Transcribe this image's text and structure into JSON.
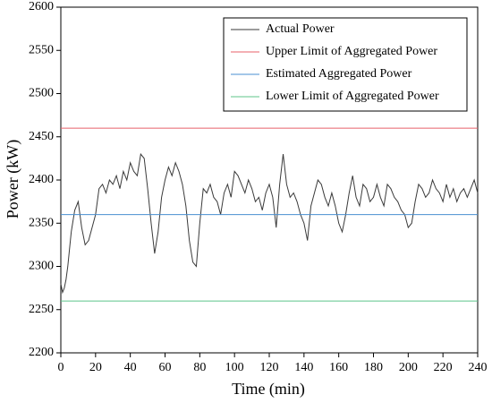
{
  "chart_data": {
    "type": "line",
    "xlabel": "Time (min)",
    "ylabel": "Power (kW)",
    "xlim": [
      0,
      240
    ],
    "xticks": [
      0,
      20,
      40,
      60,
      80,
      100,
      120,
      140,
      160,
      180,
      200,
      220,
      240
    ],
    "ylim": [
      2200,
      2600
    ],
    "yticks": [
      2200,
      2250,
      2300,
      2350,
      2400,
      2450,
      2500,
      2550,
      2600
    ],
    "legend": "upper right",
    "series": [
      {
        "name": "Actual Power",
        "color": "#3a3a3a",
        "x": [
          0,
          1,
          2,
          3,
          4,
          5,
          6,
          8,
          10,
          12,
          14,
          16,
          18,
          20,
          22,
          24,
          26,
          28,
          30,
          32,
          34,
          36,
          38,
          40,
          42,
          44,
          46,
          48,
          50,
          52,
          54,
          56,
          58,
          60,
          62,
          64,
          66,
          68,
          70,
          72,
          74,
          76,
          78,
          80,
          82,
          84,
          86,
          88,
          90,
          92,
          94,
          96,
          98,
          100,
          102,
          104,
          106,
          108,
          110,
          112,
          114,
          116,
          118,
          120,
          122,
          124,
          126,
          128,
          130,
          132,
          134,
          136,
          138,
          140,
          142,
          144,
          146,
          148,
          150,
          152,
          154,
          156,
          158,
          160,
          162,
          164,
          166,
          168,
          170,
          172,
          174,
          176,
          178,
          180,
          182,
          184,
          186,
          188,
          190,
          192,
          194,
          196,
          198,
          200,
          202,
          204,
          206,
          208,
          210,
          212,
          214,
          216,
          218,
          220,
          222,
          224,
          226,
          228,
          230,
          232,
          234,
          236,
          238,
          240
        ],
        "values": [
          2280,
          2270,
          2275,
          2285,
          2300,
          2320,
          2340,
          2365,
          2375,
          2345,
          2325,
          2330,
          2345,
          2360,
          2390,
          2395,
          2385,
          2400,
          2395,
          2405,
          2390,
          2410,
          2400,
          2420,
          2410,
          2405,
          2430,
          2425,
          2390,
          2350,
          2315,
          2340,
          2380,
          2400,
          2415,
          2405,
          2420,
          2410,
          2395,
          2370,
          2330,
          2305,
          2300,
          2350,
          2390,
          2385,
          2395,
          2380,
          2375,
          2360,
          2385,
          2395,
          2380,
          2410,
          2405,
          2395,
          2385,
          2400,
          2390,
          2375,
          2380,
          2365,
          2385,
          2395,
          2380,
          2345,
          2395,
          2430,
          2395,
          2380,
          2385,
          2375,
          2360,
          2350,
          2330,
          2370,
          2385,
          2400,
          2395,
          2380,
          2370,
          2385,
          2370,
          2350,
          2340,
          2360,
          2385,
          2405,
          2380,
          2370,
          2395,
          2390,
          2375,
          2380,
          2395,
          2380,
          2370,
          2395,
          2390,
          2380,
          2375,
          2365,
          2360,
          2345,
          2350,
          2375,
          2395,
          2390,
          2380,
          2385,
          2400,
          2390,
          2385,
          2375,
          2395,
          2380,
          2390,
          2375,
          2385,
          2390,
          2380,
          2390,
          2400,
          2385
        ]
      },
      {
        "name": "Upper Limit of Aggregated Power",
        "color": "#e8606a",
        "x": [
          0,
          240
        ],
        "values": [
          2460,
          2460
        ]
      },
      {
        "name": "Estimated Aggregated Power",
        "color": "#4a8fd0",
        "x": [
          0,
          240
        ],
        "values": [
          2360,
          2360
        ]
      },
      {
        "name": "Lower Limit of Aggregated Power",
        "color": "#5cc48a",
        "x": [
          0,
          240
        ],
        "values": [
          2260,
          2260
        ]
      }
    ]
  }
}
